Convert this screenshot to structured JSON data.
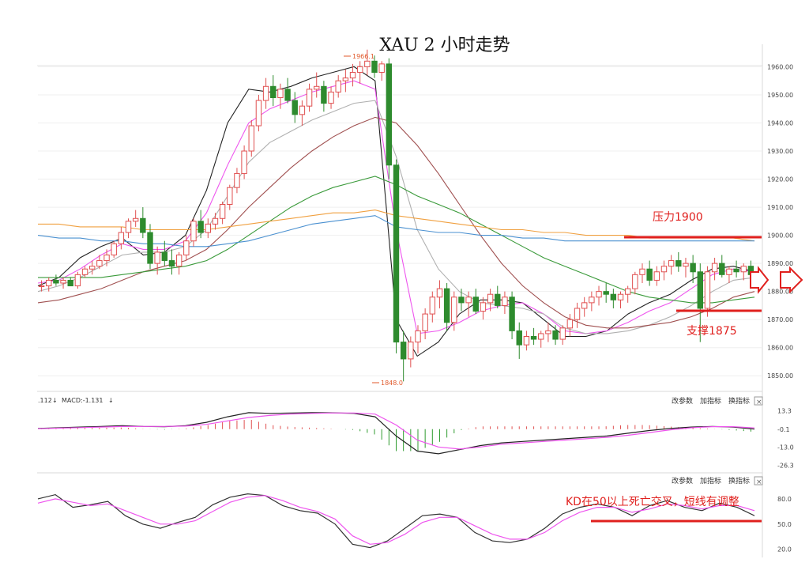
{
  "chart_data": {
    "title": "XAU 2 小时走势",
    "price_panel": {
      "type": "candlestick",
      "ylim": [
        1845,
        1968
      ],
      "yticks": [
        "1960.00",
        "1950.00",
        "1940.00",
        "1930.00",
        "1920.00",
        "1910.00",
        "1900.00",
        "1890.00",
        "1880.00",
        "1870.00",
        "1860.00",
        "1850.00"
      ],
      "high_label": "1966.1",
      "low_label": "1848.0",
      "candles": [
        [
          1882,
          1884,
          1880,
          1882
        ],
        [
          1882,
          1885,
          1880,
          1884
        ],
        [
          1884,
          1886,
          1882,
          1883
        ],
        [
          1883,
          1885,
          1881,
          1884
        ],
        [
          1884,
          1885,
          1882,
          1882
        ],
        [
          1882,
          1887,
          1881,
          1886
        ],
        [
          1886,
          1889,
          1885,
          1888
        ],
        [
          1888,
          1891,
          1886,
          1889
        ],
        [
          1889,
          1893,
          1888,
          1891
        ],
        [
          1891,
          1895,
          1889,
          1893
        ],
        [
          1893,
          1898,
          1892,
          1897
        ],
        [
          1897,
          1903,
          1895,
          1901
        ],
        [
          1901,
          1906,
          1899,
          1905
        ],
        [
          1905,
          1909,
          1903,
          1906
        ],
        [
          1906,
          1910,
          1899,
          1901
        ],
        [
          1901,
          1904,
          1888,
          1890
        ],
        [
          1890,
          1896,
          1886,
          1894
        ],
        [
          1894,
          1898,
          1889,
          1891
        ],
        [
          1891,
          1895,
          1886,
          1889
        ],
        [
          1889,
          1894,
          1886,
          1893
        ],
        [
          1893,
          1900,
          1891,
          1898
        ],
        [
          1898,
          1906,
          1896,
          1905
        ],
        [
          1905,
          1909,
          1899,
          1901
        ],
        [
          1901,
          1906,
          1899,
          1904
        ],
        [
          1904,
          1908,
          1902,
          1906
        ],
        [
          1906,
          1912,
          1904,
          1911
        ],
        [
          1911,
          1918,
          1909,
          1917
        ],
        [
          1917,
          1924,
          1915,
          1922
        ],
        [
          1922,
          1932,
          1920,
          1930
        ],
        [
          1930,
          1941,
          1928,
          1939
        ],
        [
          1939,
          1950,
          1937,
          1948
        ],
        [
          1948,
          1956,
          1945,
          1953
        ],
        [
          1953,
          1957,
          1946,
          1949
        ],
        [
          1949,
          1954,
          1945,
          1952
        ],
        [
          1952,
          1956,
          1947,
          1948
        ],
        [
          1948,
          1951,
          1940,
          1943
        ],
        [
          1943,
          1948,
          1939,
          1946
        ],
        [
          1946,
          1954,
          1944,
          1952
        ],
        [
          1952,
          1958,
          1949,
          1953
        ],
        [
          1953,
          1955,
          1944,
          1947
        ],
        [
          1947,
          1953,
          1945,
          1951
        ],
        [
          1951,
          1957,
          1949,
          1955
        ],
        [
          1955,
          1959,
          1951,
          1956
        ],
        [
          1956,
          1961,
          1953,
          1958
        ],
        [
          1958,
          1962,
          1954,
          1960
        ],
        [
          1960,
          1966.1,
          1957,
          1962
        ],
        [
          1962,
          1964,
          1956,
          1958
        ],
        [
          1958,
          1962,
          1955,
          1961
        ],
        [
          1961,
          1963,
          1920,
          1925
        ],
        [
          1925,
          1927,
          1858,
          1862
        ],
        [
          1862,
          1866,
          1848,
          1856
        ],
        [
          1856,
          1864,
          1853,
          1862
        ],
        [
          1862,
          1868,
          1858,
          1866
        ],
        [
          1866,
          1874,
          1863,
          1872
        ],
        [
          1872,
          1880,
          1869,
          1878
        ],
        [
          1878,
          1884,
          1874,
          1881
        ],
        [
          1881,
          1883,
          1866,
          1869
        ],
        [
          1869,
          1880,
          1866,
          1878
        ],
        [
          1878,
          1881,
          1873,
          1876
        ],
        [
          1876,
          1880,
          1871,
          1878
        ],
        [
          1878,
          1881,
          1872,
          1873
        ],
        [
          1873,
          1878,
          1870,
          1876
        ],
        [
          1876,
          1881,
          1873,
          1879
        ],
        [
          1879,
          1882,
          1874,
          1875
        ],
        [
          1875,
          1880,
          1872,
          1878
        ],
        [
          1878,
          1880,
          1863,
          1866
        ],
        [
          1866,
          1869,
          1856,
          1861
        ],
        [
          1861,
          1866,
          1859,
          1864
        ],
        [
          1864,
          1867,
          1861,
          1863
        ],
        [
          1863,
          1866,
          1860,
          1865
        ],
        [
          1865,
          1869,
          1862,
          1866
        ],
        [
          1866,
          1868,
          1861,
          1863
        ],
        [
          1863,
          1868,
          1861,
          1867
        ],
        [
          1867,
          1872,
          1864,
          1870
        ],
        [
          1870,
          1876,
          1867,
          1874
        ],
        [
          1874,
          1878,
          1871,
          1876
        ],
        [
          1876,
          1880,
          1873,
          1878
        ],
        [
          1878,
          1882,
          1875,
          1880
        ],
        [
          1880,
          1883,
          1876,
          1879
        ],
        [
          1879,
          1881,
          1874,
          1877
        ],
        [
          1877,
          1880,
          1874,
          1879
        ],
        [
          1879,
          1882,
          1876,
          1881
        ],
        [
          1881,
          1887,
          1879,
          1886
        ],
        [
          1886,
          1890,
          1883,
          1888
        ],
        [
          1888,
          1891,
          1882,
          1884
        ],
        [
          1884,
          1889,
          1882,
          1887
        ],
        [
          1887,
          1891,
          1884,
          1889
        ],
        [
          1889,
          1893,
          1886,
          1891
        ],
        [
          1891,
          1894,
          1887,
          1889
        ],
        [
          1889,
          1892,
          1885,
          1890
        ],
        [
          1890,
          1893,
          1883,
          1887
        ],
        [
          1887,
          1890,
          1862,
          1874
        ],
        [
          1874,
          1889,
          1871,
          1887
        ],
        [
          1887,
          1892,
          1884,
          1890
        ],
        [
          1890,
          1893,
          1885,
          1886
        ],
        [
          1886,
          1889,
          1883,
          1888
        ],
        [
          1888,
          1891,
          1885,
          1887
        ],
        [
          1887,
          1890,
          1884,
          1889
        ],
        [
          1889,
          1891,
          1883,
          1886
        ]
      ],
      "moving_averages": [
        {
          "color": "#222222",
          "values": [
            1882,
            1885,
            1892,
            1896,
            1899,
            1893,
            1894,
            1900,
            1916,
            1940,
            1952,
            1951,
            1953,
            1956,
            1958,
            1960,
            1955,
            1870,
            1857,
            1862,
            1872,
            1877,
            1877,
            1876,
            1870,
            1864,
            1864,
            1866,
            1872,
            1876,
            1879,
            1884,
            1888,
            1889,
            1887
          ]
        },
        {
          "color": "#ee55ee",
          "values": [
            1883,
            1884,
            1888,
            1893,
            1897,
            1895,
            1895,
            1898,
            1908,
            1925,
            1940,
            1945,
            1948,
            1951,
            1953,
            1955,
            1952,
            1902,
            1865,
            1866,
            1869,
            1873,
            1875,
            1876,
            1872,
            1866,
            1865,
            1866,
            1869,
            1873,
            1876,
            1881,
            1886,
            1888,
            1887
          ]
        },
        {
          "color": "#b0b0b0",
          "values": [
            1880,
            1882,
            1885,
            1889,
            1893,
            1894,
            1894,
            1896,
            1902,
            1914,
            1926,
            1933,
            1937,
            1941,
            1944,
            1947,
            1948,
            1928,
            1902,
            1888,
            1880,
            1876,
            1875,
            1874,
            1872,
            1867,
            1865,
            1865,
            1866,
            1868,
            1871,
            1875,
            1880,
            1884,
            1885
          ]
        },
        {
          "color": "#a05050",
          "values": [
            1876,
            1877,
            1879,
            1881,
            1884,
            1887,
            1889,
            1891,
            1895,
            1902,
            1910,
            1917,
            1924,
            1930,
            1935,
            1939,
            1942,
            1940,
            1932,
            1922,
            1911,
            1900,
            1890,
            1882,
            1876,
            1871,
            1868,
            1867,
            1867,
            1868,
            1869,
            1871,
            1874,
            1878,
            1880
          ]
        },
        {
          "color": "#3a9a3a",
          "values": [
            1885,
            1885,
            1885,
            1885,
            1886,
            1887,
            1888,
            1889,
            1891,
            1895,
            1900,
            1905,
            1910,
            1914,
            1917,
            1919,
            1921,
            1918,
            1914,
            1911,
            1908,
            1904,
            1900,
            1896,
            1892,
            1889,
            1886,
            1883,
            1880,
            1878,
            1877,
            1876,
            1876,
            1877,
            1878
          ]
        },
        {
          "color": "#f0a040",
          "values": [
            1904,
            1904,
            1903,
            1903,
            1903,
            1902,
            1902,
            1902,
            1902,
            1903,
            1904,
            1905,
            1906,
            1907,
            1908,
            1908,
            1909,
            1907,
            1906,
            1905,
            1904,
            1903,
            1902,
            1902,
            1901,
            1901,
            1900,
            1900,
            1900,
            1899,
            1899,
            1899,
            1899,
            1899,
            1898
          ]
        },
        {
          "color": "#4a90d0",
          "values": [
            1900,
            1899,
            1899,
            1898,
            1898,
            1897,
            1897,
            1896,
            1896,
            1897,
            1898,
            1900,
            1902,
            1904,
            1905,
            1906,
            1907,
            1903,
            1902,
            1901,
            1901,
            1900,
            1900,
            1899,
            1899,
            1898,
            1898,
            1898,
            1898,
            1898,
            1898,
            1898,
            1898,
            1898,
            1898
          ]
        }
      ],
      "annotations": [
        {
          "text": "压力1900",
          "price": 1900
        },
        {
          "text": "支撑1875",
          "price": 1875
        }
      ]
    },
    "macd_panel": {
      "header_value1": ".112",
      "header_label": "MACD",
      "header_value2": ":-1.131",
      "yticks": [
        "13.3",
        "-0.1",
        "-13.0",
        "-26.3"
      ],
      "ylim": [
        -29,
        16
      ],
      "dif": [
        0.5,
        1,
        1.5,
        2,
        2.5,
        2,
        1.8,
        2.5,
        5,
        9,
        12,
        11.5,
        11.8,
        12,
        11.9,
        11.5,
        9,
        -5,
        -16,
        -18,
        -15,
        -12,
        -10,
        -9,
        -8,
        -7,
        -6,
        -5,
        -3,
        -1,
        0.5,
        1.5,
        2,
        1.5,
        0
      ],
      "dea": [
        0.3,
        0.7,
        1.1,
        1.5,
        1.9,
        2,
        2,
        2.2,
        3.5,
        6,
        8.5,
        10,
        11,
        11.5,
        11.8,
        11.8,
        11,
        3,
        -8,
        -13,
        -14.5,
        -13,
        -11,
        -10,
        -9,
        -8,
        -7,
        -6,
        -4.5,
        -2.5,
        -0.5,
        1,
        1.8,
        1.8,
        0.9
      ],
      "buttons": [
        "改参数",
        "加指标",
        "换指标"
      ]
    },
    "kd_panel": {
      "yticks": [
        "80.0",
        "50.0",
        "20.0"
      ],
      "ylim": [
        15,
        95
      ],
      "k": [
        80,
        85,
        70,
        73,
        77,
        60,
        50,
        45,
        52,
        58,
        73,
        82,
        86,
        84,
        72,
        66,
        63,
        50,
        26,
        22,
        30,
        45,
        60,
        62,
        58,
        40,
        30,
        28,
        32,
        45,
        62,
        70,
        74,
        70,
        60,
        72,
        78,
        70,
        66,
        75,
        70,
        60
      ],
      "d": [
        75,
        80,
        76,
        72,
        74,
        66,
        58,
        50,
        50,
        54,
        65,
        76,
        82,
        84,
        78,
        70,
        65,
        56,
        36,
        26,
        28,
        38,
        52,
        58,
        58,
        48,
        38,
        32,
        32,
        40,
        54,
        64,
        70,
        70,
        64,
        68,
        74,
        72,
        68,
        72,
        72,
        66
      ],
      "annotation": "KD在50以上死亡交叉，短线有调整",
      "buttons": [
        "改参数",
        "加指标",
        "换指标"
      ]
    }
  }
}
